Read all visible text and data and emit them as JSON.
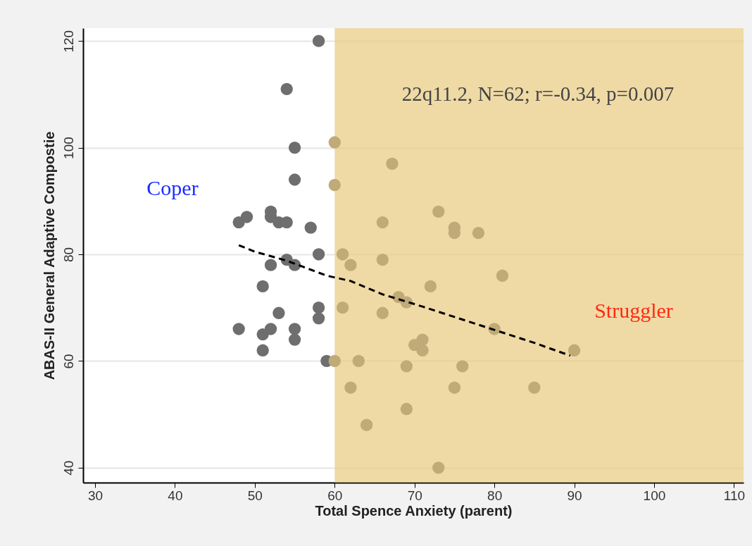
{
  "chart_data": {
    "type": "scatter",
    "xlabel": "Total Spence Anxiety (parent)",
    "ylabel": "ABAS-II General Adaptive Compostie",
    "xlim": [
      28.5,
      111.2
    ],
    "ylim": [
      37.2,
      122.4
    ],
    "xticks": [
      30,
      40,
      50,
      60,
      70,
      80,
      90,
      100,
      110
    ],
    "yticks": [
      40,
      60,
      80,
      100,
      120
    ],
    "grid": "y",
    "series": [
      {
        "color": "#6e6e6e",
        "marker": "circle",
        "x": [
          58,
          54,
          55,
          55,
          48,
          49,
          52,
          52,
          53,
          54,
          57,
          58,
          54,
          55,
          52,
          51,
          53,
          58,
          58,
          48,
          51,
          52,
          55,
          55,
          51,
          59
        ],
        "values": [
          120,
          111,
          100,
          94,
          86,
          87,
          88,
          87,
          86,
          86,
          85,
          80,
          79,
          78,
          78,
          74,
          69,
          70,
          68,
          66,
          65,
          66,
          66,
          64,
          62,
          60
        ]
      },
      {
        "color": "#bfaa78",
        "marker": "circle",
        "x": [
          60,
          60,
          67.2,
          73,
          66,
          75,
          75,
          78,
          61,
          62,
          66,
          81,
          72,
          68,
          69,
          61,
          66,
          80,
          70,
          71,
          71,
          90,
          60,
          63,
          69,
          76,
          62,
          75,
          85,
          69,
          64,
          73
        ],
        "values": [
          101,
          93,
          97,
          88,
          86,
          85,
          84,
          84,
          80,
          78,
          79,
          76,
          74,
          72,
          71,
          70,
          69,
          66,
          63,
          64,
          62,
          62,
          60,
          60,
          59,
          59,
          55,
          55,
          55,
          51,
          48,
          40
        ]
      },
      {
        "type": "line",
        "color": "#000000",
        "line_style": "dashed",
        "x": [
          48,
          50,
          54,
          59,
          62,
          66,
          71,
          78,
          85,
          89.5
        ],
        "values": [
          81.7,
          80.5,
          78.8,
          76,
          75,
          72.5,
          70.2,
          66.8,
          63.4,
          61
        ]
      }
    ],
    "bands": [
      {
        "axis": "x",
        "from": 60,
        "to": 111.2,
        "color": "#e8cb80"
      }
    ],
    "annotations": [
      "22q11.2, N=62; r=-0.34, p=0.007",
      "Coper",
      "Struggler"
    ]
  }
}
